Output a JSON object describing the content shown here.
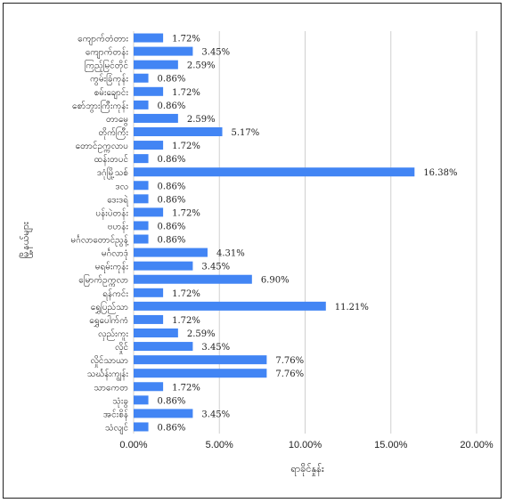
{
  "chart_data": {
    "type": "bar",
    "orientation": "horizontal",
    "title": "",
    "xlabel": "ရာခိုင်နှုန်း",
    "ylabel": "မြို့နယ်များ",
    "xlim": [
      0,
      20
    ],
    "x_ticks": [
      "0.00%",
      "5.00%",
      "10.00%",
      "15.00%",
      "20.00%"
    ],
    "grid": true,
    "bar_color": "#4285f4",
    "categories": [
      "ကျောက်တံတား",
      "ကျောက်တန်း",
      "ကြည့်မြင်တိုင်",
      "ကွမ်းခြံကုန်း",
      "စမ်းချောင်း",
      "စော်ဘွားကြီးကုန်း",
      "တာမွေ",
      "တိုက်ကြီး",
      "တောင်ဥက္ကလာပ",
      "ထန်းတပင်",
      "ဒဂုံမြို့သစ်",
      "ဒလ",
      "ဒေးဒရဲ",
      "ပန်းပဲတန်း",
      "ဗဟန်း",
      "မင်္ဂလာတောင်ညွန့်",
      "မင်္ဂလာဒုံ",
      "မရမ်းကုန်း",
      "မြောက်ဥက္ကလာ",
      "ရန်ကင်း",
      "ရွှေပြည်သာ",
      "ရွှေပေါက်ကံ",
      "လှည်းကူး",
      "လှိုင်",
      "လှိုင်သာယာ",
      "သင်္ဃန်းကျွန်း",
      "သာကေတ",
      "သုံးခွ",
      "အင်းစိန်",
      "သံလျင်"
    ],
    "values": [
      1.72,
      3.45,
      2.59,
      0.86,
      1.72,
      0.86,
      2.59,
      5.17,
      1.72,
      0.86,
      16.38,
      0.86,
      0.86,
      1.72,
      0.86,
      0.86,
      4.31,
      3.45,
      6.9,
      1.72,
      11.21,
      1.72,
      2.59,
      3.45,
      7.76,
      7.76,
      1.72,
      0.86,
      3.45,
      0.86
    ],
    "labels": [
      "1.72%",
      "3.45%",
      "2.59%",
      "0.86%",
      "1.72%",
      "0.86%",
      "2.59%",
      "5.17%",
      "1.72%",
      "0.86%",
      "16.38%",
      "0.86%",
      "0.86%",
      "1.72%",
      "0.86%",
      "0.86%",
      "4.31%",
      "3.45%",
      "6.90%",
      "1.72%",
      "11.21%",
      "1.72%",
      "2.59%",
      "3.45%",
      "7.76%",
      "7.76%",
      "1.72%",
      "0.86%",
      "3.45%",
      "0.86%"
    ]
  }
}
